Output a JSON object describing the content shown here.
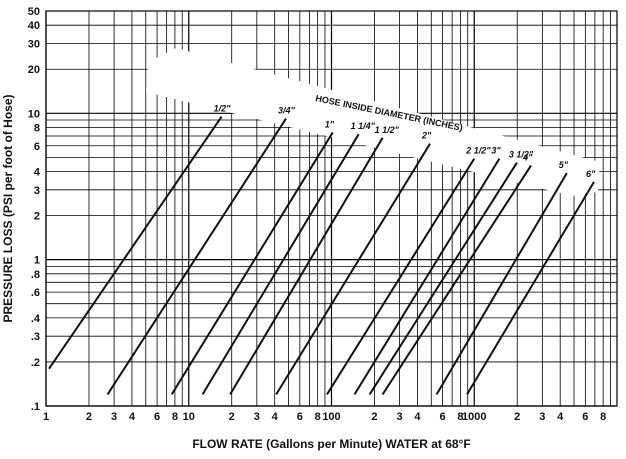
{
  "chart_data": {
    "type": "line",
    "x_scale": "log",
    "y_scale": "log",
    "xlim": [
      1,
      10000
    ],
    "ylim": [
      0.1,
      50
    ],
    "xlabel": "FLOW RATE (Gallons per Minute) WATER at 68°F",
    "ylabel": "PRESSURE LOSS (PSI per foot of Hose)",
    "band_title": "HOSE INSIDE DIAMETER (INCHES)",
    "grid": true,
    "x_tick_labels": [
      {
        "value": 1,
        "label": "1"
      },
      {
        "value": 2,
        "label": "2"
      },
      {
        "value": 3,
        "label": "3"
      },
      {
        "value": 4,
        "label": "4"
      },
      {
        "value": 6,
        "label": "6"
      },
      {
        "value": 8,
        "label": "8"
      },
      {
        "value": 10,
        "label": "10"
      },
      {
        "value": 20,
        "label": "2"
      },
      {
        "value": 30,
        "label": "3"
      },
      {
        "value": 40,
        "label": "4"
      },
      {
        "value": 60,
        "label": "6"
      },
      {
        "value": 80,
        "label": "8"
      },
      {
        "value": 100,
        "label": "100"
      },
      {
        "value": 200,
        "label": "2"
      },
      {
        "value": 300,
        "label": "3"
      },
      {
        "value": 400,
        "label": "4"
      },
      {
        "value": 600,
        "label": "6"
      },
      {
        "value": 800,
        "label": "8"
      },
      {
        "value": 1000,
        "label": "1000"
      },
      {
        "value": 2000,
        "label": "2"
      },
      {
        "value": 3000,
        "label": "3"
      },
      {
        "value": 4000,
        "label": "4"
      },
      {
        "value": 6000,
        "label": "6"
      },
      {
        "value": 8000,
        "label": "8"
      }
    ],
    "y_tick_labels": [
      {
        "value": 0.1,
        "label": ".1"
      },
      {
        "value": 0.2,
        "label": ".2"
      },
      {
        "value": 0.3,
        "label": ".3"
      },
      {
        "value": 0.4,
        "label": ".4"
      },
      {
        "value": 0.6,
        "label": ".6"
      },
      {
        "value": 0.8,
        "label": ".8"
      },
      {
        "value": 1,
        "label": "1"
      },
      {
        "value": 2,
        "label": "2"
      },
      {
        "value": 3,
        "label": "3"
      },
      {
        "value": 4,
        "label": "4"
      },
      {
        "value": 6,
        "label": "6"
      },
      {
        "value": 8,
        "label": "8"
      },
      {
        "value": 10,
        "label": "10"
      },
      {
        "value": 20,
        "label": "20"
      },
      {
        "value": 30,
        "label": "30"
      },
      {
        "value": 40,
        "label": "40"
      },
      {
        "value": 50,
        "label": "50"
      }
    ],
    "series": [
      {
        "name": "1/2\"",
        "points": [
          [
            1.05,
            0.18
          ],
          [
            17,
            9.5
          ]
        ]
      },
      {
        "name": "3/4\"",
        "points": [
          [
            2.7,
            0.12
          ],
          [
            48,
            9.2
          ]
        ]
      },
      {
        "name": "1\"",
        "points": [
          [
            7.6,
            0.12
          ],
          [
            102,
            7.4
          ]
        ]
      },
      {
        "name": "1 1/4\"",
        "points": [
          [
            12.5,
            0.12
          ],
          [
            155,
            7.2
          ]
        ]
      },
      {
        "name": "1 1/2\"",
        "points": [
          [
            19.5,
            0.12
          ],
          [
            228,
            6.8
          ]
        ]
      },
      {
        "name": "2\"",
        "points": [
          [
            41,
            0.12
          ],
          [
            490,
            6.2
          ]
        ]
      },
      {
        "name": "2 1/2\"",
        "points": [
          [
            93,
            0.12
          ],
          [
            1000,
            4.9
          ]
        ]
      },
      {
        "name": "3\"",
        "points": [
          [
            145,
            0.12
          ],
          [
            1500,
            4.9
          ]
        ]
      },
      {
        "name": "3 1/2\"",
        "points": [
          [
            185,
            0.12
          ],
          [
            1990,
            4.6
          ]
        ]
      },
      {
        "name": "4\"",
        "points": [
          [
            228,
            0.12
          ],
          [
            2500,
            4.4
          ]
        ]
      },
      {
        "name": "5\"",
        "points": [
          [
            545,
            0.12
          ],
          [
            4450,
            3.9
          ]
        ]
      },
      {
        "name": "6\"",
        "points": [
          [
            890,
            0.12
          ],
          [
            6900,
            3.4
          ]
        ]
      }
    ]
  }
}
